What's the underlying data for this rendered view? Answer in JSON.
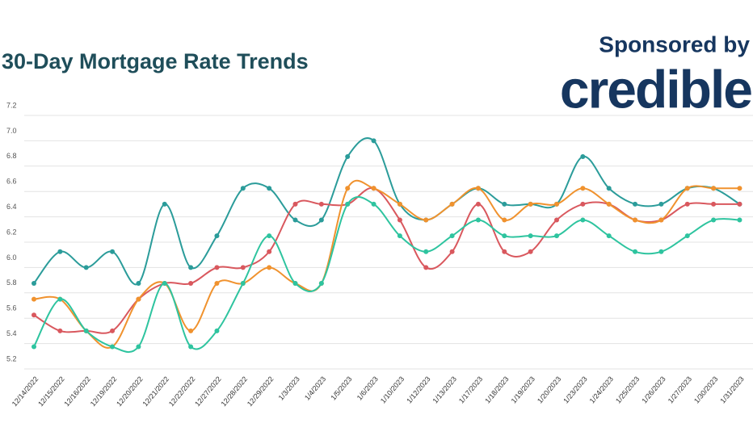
{
  "chart_data": {
    "type": "line",
    "title": "30-Day Mortgage Rate Trends",
    "sponsor": "Sponsored by",
    "brand": "credible",
    "categories": [
      "12/14/2022",
      "12/15/2022",
      "12/16/2022",
      "12/19/2022",
      "12/20/2022",
      "12/21/2022",
      "12/22/2022",
      "12/27/2022",
      "12/28/2022",
      "12/29/2022",
      "1/3/2023",
      "1/4/2023",
      "1/5/2023",
      "1/6/2023",
      "1/10/2023",
      "1/12/2023",
      "1/13/2023",
      "1/17/2023",
      "1/18/2023",
      "1/19/2023",
      "1/20/2023",
      "1/23/2023",
      "1/24/2023",
      "1/25/2023",
      "1/26/2023",
      "1/27/2023",
      "1/30/2023",
      "1/31/2023"
    ],
    "series": [
      {
        "color": "#2b9c9a",
        "values": [
          5.875,
          6.125,
          6.0,
          6.125,
          5.875,
          6.5,
          6.0,
          6.25,
          6.625,
          6.625,
          6.375,
          6.375,
          6.875,
          7.0,
          6.5,
          6.375,
          6.5,
          6.625,
          6.5,
          6.5,
          6.5,
          6.875,
          6.625,
          6.5,
          6.5,
          6.625,
          6.625,
          6.5
        ]
      },
      {
        "color": "#d9585e",
        "values": [
          5.625,
          5.5,
          5.5,
          5.5,
          5.75,
          5.875,
          5.875,
          6.0,
          6.0,
          6.125,
          6.5,
          6.5,
          6.5,
          6.625,
          6.375,
          6.0,
          6.125,
          6.5,
          6.125,
          6.125,
          6.375,
          6.5,
          6.5,
          6.375,
          6.375,
          6.5,
          6.5,
          6.5
        ]
      },
      {
        "color": "#f0922e",
        "values": [
          5.75,
          5.75,
          5.5,
          5.375,
          5.75,
          5.875,
          5.5,
          5.875,
          5.875,
          6.0,
          5.875,
          5.875,
          6.625,
          6.625,
          6.5,
          6.375,
          6.5,
          6.625,
          6.375,
          6.5,
          6.5,
          6.625,
          6.5,
          6.375,
          6.375,
          6.625,
          6.625,
          6.625
        ]
      },
      {
        "color": "#2ec49f",
        "values": [
          5.375,
          5.75,
          5.5,
          5.375,
          5.375,
          5.875,
          5.375,
          5.5,
          5.875,
          6.25,
          5.875,
          5.875,
          6.5,
          6.5,
          6.25,
          6.125,
          6.25,
          6.375,
          6.25,
          6.25,
          6.25,
          6.375,
          6.25,
          6.125,
          6.125,
          6.25,
          6.375,
          6.375
        ]
      }
    ],
    "ylim": [
      5.2,
      7.2
    ],
    "yticks": [
      5.2,
      5.4,
      5.6,
      5.8,
      {
        "value": 6.0,
        "label": "6.0"
      },
      6.2,
      6.4,
      6.6,
      6.8,
      {
        "value": 7.0,
        "label": "7.0"
      },
      7.2
    ],
    "grid": true
  }
}
